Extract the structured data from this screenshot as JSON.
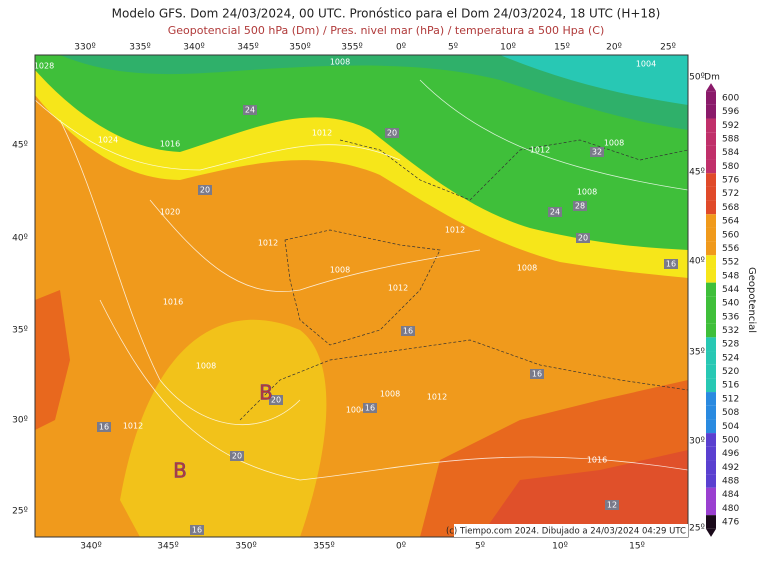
{
  "header": {
    "title": "Modelo GFS. Dom 24/03/2024, 00 UTC. Pronóstico para el Dom 24/03/2024, 18 UTC (H+18)",
    "subtitle": "Geopotencial 500 hPa (Dm) / Pres. nivel mar (hPa) / temperatura a 500 Hpa (C)"
  },
  "map": {
    "top_lon_labels": [
      "330º",
      "335º",
      "340º",
      "345º",
      "350º",
      "355º",
      "0º",
      "5º",
      "10º",
      "15º",
      "20º",
      "25º"
    ],
    "bottom_lon_labels": [
      "340º",
      "345º",
      "350º",
      "355º",
      "0º",
      "5º",
      "10º",
      "15º"
    ],
    "left_lat_labels": [
      "45º",
      "40º",
      "35º",
      "30º",
      "25º"
    ],
    "right_lat_labels": [
      "50º",
      "45º",
      "40º",
      "35º",
      "30º",
      "25º"
    ],
    "isobar_labels": [
      "1028",
      "1024",
      "1016",
      "1020",
      "1016",
      "1012",
      "1012",
      "1008",
      "1008",
      "1012",
      "1012",
      "1008",
      "1012",
      "1008",
      "1004",
      "1008",
      "1008",
      "1012",
      "1008",
      "1004",
      "1012",
      "1016"
    ],
    "temperature_labels": [
      "24",
      "20",
      "20",
      "24",
      "28",
      "32",
      "20",
      "16",
      "16",
      "16",
      "20",
      "20",
      "16",
      "16",
      "12",
      "16"
    ],
    "lows": [
      "B",
      "B"
    ]
  },
  "colorbar": {
    "unit": "Dm",
    "title": "Geopotencial",
    "ticks": [
      600,
      596,
      592,
      588,
      584,
      580,
      576,
      572,
      568,
      564,
      560,
      556,
      552,
      548,
      544,
      540,
      536,
      532,
      528,
      524,
      520,
      516,
      512,
      508,
      504,
      500,
      496,
      492,
      488,
      484,
      480,
      476
    ]
  },
  "credit": "(c) Tiempo.com 2024. Dibujado a 24/03/2024 04:29 UTC"
}
